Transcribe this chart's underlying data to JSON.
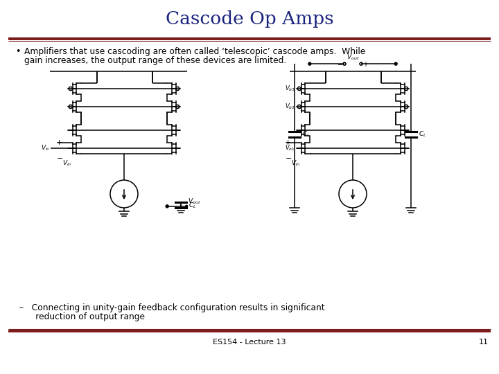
{
  "title": "Cascode Op Amps",
  "title_color": "#1a237e",
  "title_fontsize": 19,
  "bg_color": "#ffffff",
  "rule_color": "#7b1a1a",
  "bullet_line1": "Amplifiers that use cascoding are often called ‘telescopic’ cascode amps.  While",
  "bullet_line2": "gain increases, the output range of these devices are limited.",
  "bullet_fontsize": 8.8,
  "sub_line1": "–   Connecting in unity-gain feedback configuration results in significant",
  "sub_line2": "      reduction of output range",
  "sub_fontsize": 8.8,
  "footer_text": "ES154 - Lecture 13",
  "footer_page": "11",
  "footer_fontsize": 8.0
}
